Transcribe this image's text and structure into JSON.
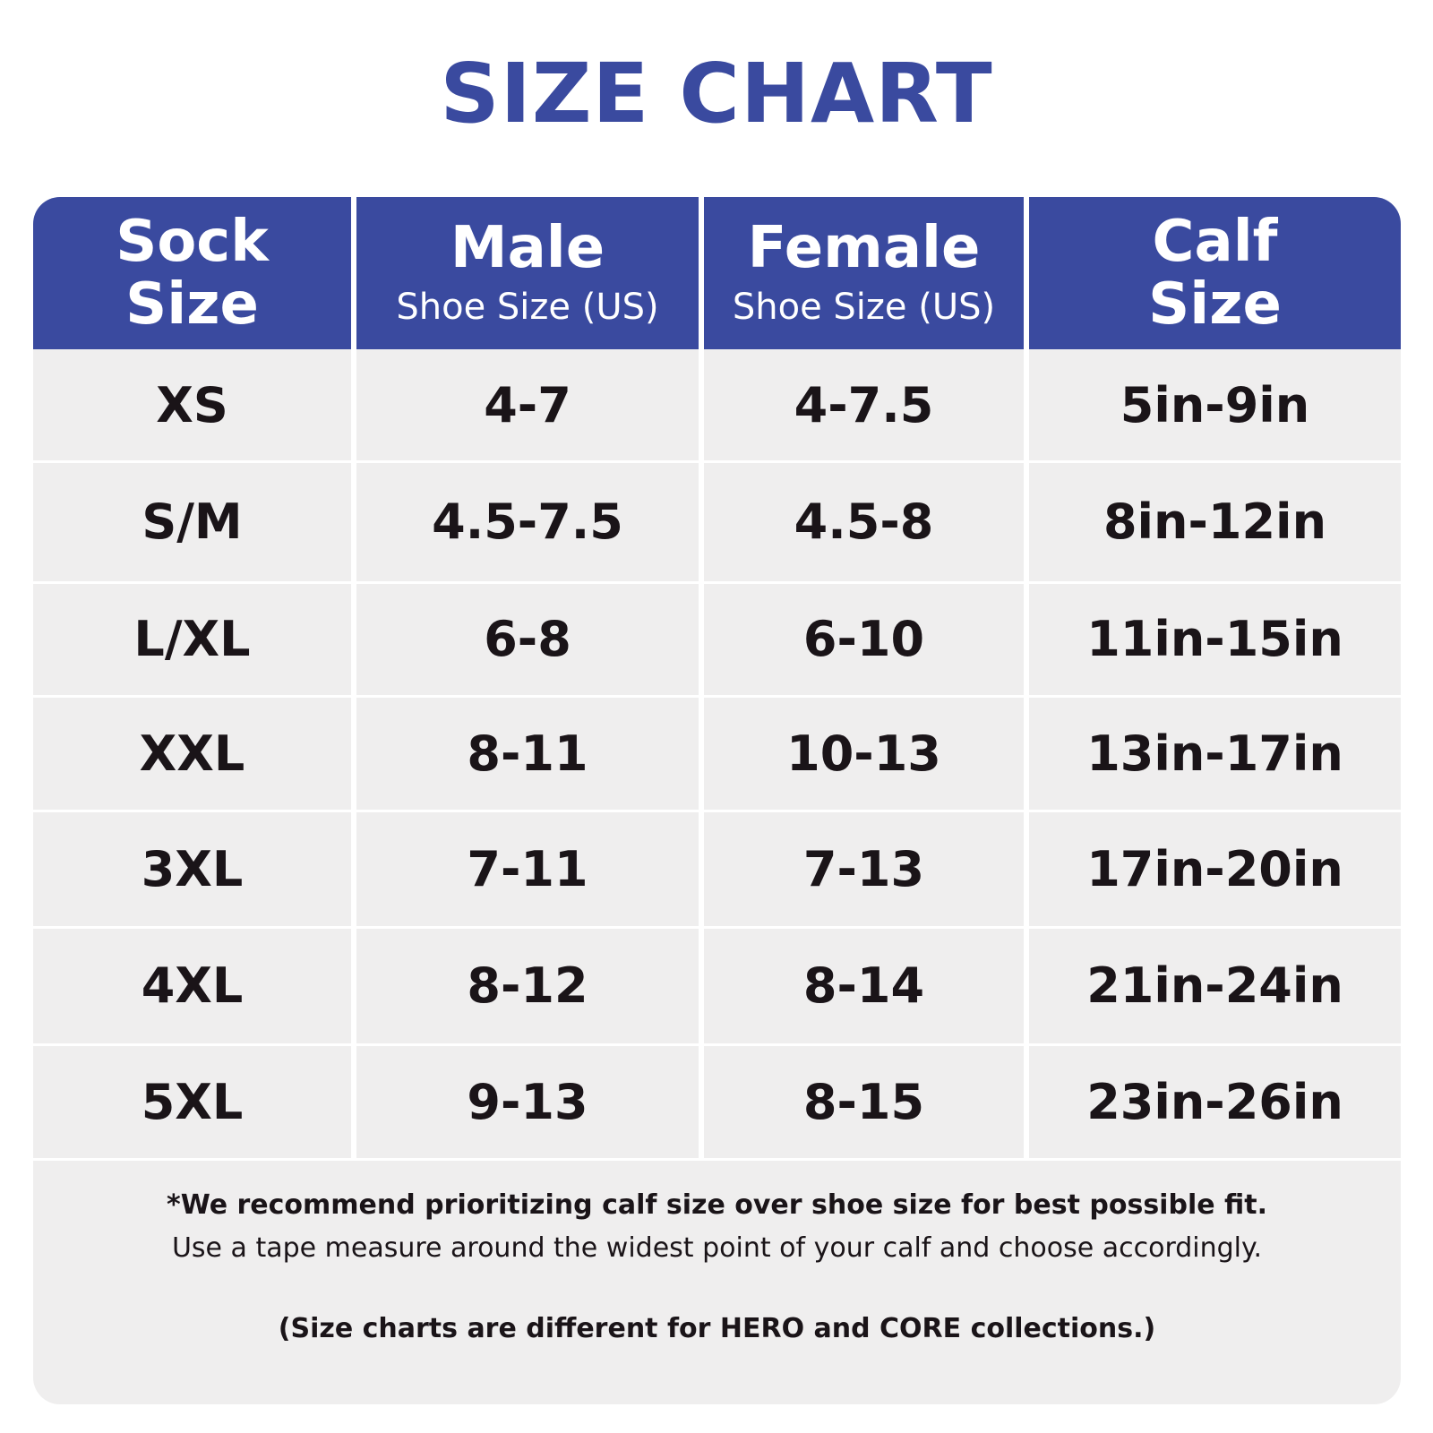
{
  "title": "SIZE CHART",
  "colors": {
    "brand": "#3A4A9F",
    "card_bg": "#efeeee",
    "text": "#1a1418"
  },
  "columns": [
    {
      "main": "Sock Size",
      "sub": ""
    },
    {
      "main": "Male",
      "sub": "Shoe Size (US)"
    },
    {
      "main": "Female",
      "sub": "Shoe Size (US)"
    },
    {
      "main": "Calf Size",
      "sub": ""
    }
  ],
  "rows": [
    [
      "XS",
      "4-7",
      "4-7.5",
      "5in-9in"
    ],
    [
      "S/M",
      "4.5-7.5",
      "4.5-8",
      "8in-12in"
    ],
    [
      "L/XL",
      "6-8",
      "6-10",
      "11in-15in"
    ],
    [
      "XXL",
      "8-11",
      "10-13",
      "13in-17in"
    ],
    [
      "3XL",
      "7-11",
      "7-13",
      "17in-20in"
    ],
    [
      "4XL",
      "8-12",
      "8-14",
      "21in-24in"
    ],
    [
      "5XL",
      "9-13",
      "8-15",
      "23in-26in"
    ]
  ],
  "notes": {
    "recommendation": "*We recommend prioritizing calf size over shoe size for best possible fit.",
    "instruction": "Use a tape measure around the widest point of your calf and choose accordingly.",
    "disclaimer": "(Size charts are different for HERO and CORE collections.)"
  }
}
